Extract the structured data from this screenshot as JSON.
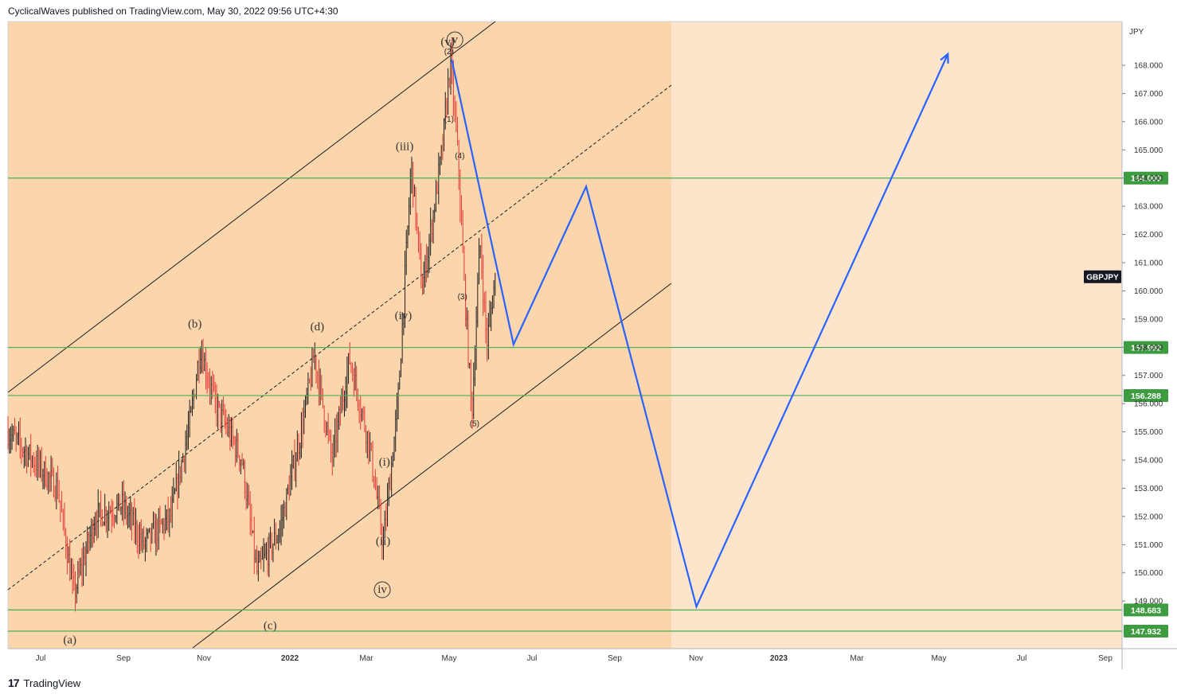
{
  "header": {
    "published_text": "CyclicalWaves published on TradingView.com, May 30, 2022 09:56 UTC+4:30"
  },
  "footer": {
    "logo_text": "TradingView"
  },
  "chart_data": {
    "type": "candlestick",
    "symbol": "GBPJPY",
    "currency_label": "JPY",
    "y_range": [
      147.5,
      169.0
    ],
    "y_ticks": [
      149.0,
      150.0,
      151.0,
      152.0,
      153.0,
      154.0,
      155.0,
      156.0,
      157.0,
      158.0,
      159.0,
      160.0,
      161.0,
      162.0,
      163.0,
      164.0,
      165.0,
      166.0,
      167.0,
      168.0
    ],
    "x_labels": [
      "Jul",
      "Sep",
      "Nov",
      "2022",
      "Mar",
      "May",
      "Jul",
      "Sep",
      "Nov",
      "2023",
      "Mar",
      "May",
      "Jul",
      "Sep"
    ],
    "colors": {
      "bull": "#1c1c1c",
      "bear": "#e53935",
      "level_line": "#4caf50",
      "level_badge": "#3d9c40",
      "projection": "#2962ff",
      "channel": "#1c1c1c",
      "bg_light": "#fde5cc",
      "bg_dark": "#fbd6ad"
    },
    "horizontal_levels": [
      {
        "label": "164.000",
        "value": 164.0
      },
      {
        "label": "157.992",
        "value": 157.992
      },
      {
        "label": "156.288",
        "value": 156.288
      },
      {
        "label": "148.683",
        "value": 148.683
      },
      {
        "label": "147.932",
        "value": 147.932
      }
    ],
    "price_path_anchors": [
      {
        "date": "2021-06-01",
        "price": 155.0
      },
      {
        "date": "2021-06-20",
        "price": 154.0
      },
      {
        "date": "2021-07-08",
        "price": 153.0
      },
      {
        "date": "2021-07-20",
        "price": 149.2
      },
      {
        "date": "2021-08-05",
        "price": 152.0
      },
      {
        "date": "2021-08-25",
        "price": 152.4
      },
      {
        "date": "2021-09-10",
        "price": 151.0
      },
      {
        "date": "2021-09-30",
        "price": 152.0
      },
      {
        "date": "2021-10-15",
        "price": 155.5
      },
      {
        "date": "2021-10-22",
        "price": 158.0
      },
      {
        "date": "2021-11-02",
        "price": 156.0
      },
      {
        "date": "2021-11-22",
        "price": 154.0
      },
      {
        "date": "2021-12-03",
        "price": 150.0
      },
      {
        "date": "2021-12-20",
        "price": 151.5
      },
      {
        "date": "2022-01-05",
        "price": 155.0
      },
      {
        "date": "2022-01-15",
        "price": 157.7
      },
      {
        "date": "2022-01-28",
        "price": 154.0
      },
      {
        "date": "2022-02-10",
        "price": 157.6
      },
      {
        "date": "2022-02-25",
        "price": 154.5
      },
      {
        "date": "2022-03-07",
        "price": 151.0
      },
      {
        "date": "2022-03-18",
        "price": 156.0
      },
      {
        "date": "2022-03-28",
        "price": 164.5
      },
      {
        "date": "2022-04-05",
        "price": 160.0
      },
      {
        "date": "2022-04-20",
        "price": 165.0
      },
      {
        "date": "2022-04-26",
        "price": 168.2
      },
      {
        "date": "2022-05-02",
        "price": 164.5
      },
      {
        "date": "2022-05-06",
        "price": 160.5
      },
      {
        "date": "2022-05-12",
        "price": 155.6
      },
      {
        "date": "2022-05-18",
        "price": 161.8
      },
      {
        "date": "2022-05-23",
        "price": 158.1
      },
      {
        "date": "2022-05-30",
        "price": 160.7
      }
    ],
    "projection": [
      {
        "date": "2022-04-27",
        "price": 168.2
      },
      {
        "date": "2022-06-12",
        "price": 158.1
      },
      {
        "date": "2022-08-05",
        "price": 163.7
      },
      {
        "date": "2022-10-26",
        "price": 148.8
      },
      {
        "date": "2023-05-01",
        "price": 168.4
      }
    ],
    "wave_labels": [
      {
        "text": "(a)",
        "date": "2021-07-17",
        "price": 147.5
      },
      {
        "text": "(b)",
        "date": "2021-10-18",
        "price": 158.7
      },
      {
        "text": "(c)",
        "date": "2021-12-13",
        "price": 148.0
      },
      {
        "text": "(d)",
        "date": "2022-01-17",
        "price": 158.6
      },
      {
        "text": "(ii)",
        "date": "2022-03-07",
        "price": 151.0
      },
      {
        "text": "(i)",
        "date": "2022-03-08",
        "price": 153.8
      },
      {
        "text": "(iii)",
        "date": "2022-03-23",
        "price": 165.0
      },
      {
        "text": "(iv)",
        "date": "2022-03-22",
        "price": 159.0
      },
      {
        "text": "(v)",
        "date": "2022-04-24",
        "price": 168.7
      },
      {
        "text": "(1)",
        "date": "2022-04-25",
        "price": 166.0
      },
      {
        "text": "(2)",
        "date": "2022-04-25",
        "price": 168.4
      },
      {
        "text": "(3)",
        "date": "2022-05-05",
        "price": 159.7
      },
      {
        "text": "(4)",
        "date": "2022-05-03",
        "price": 164.7
      },
      {
        "text": "(5)",
        "date": "2022-05-14",
        "price": 155.2
      }
    ],
    "circled_labels": [
      {
        "text": "iv",
        "date": "2022-03-04",
        "price": 149.4
      },
      {
        "text": "v",
        "date": "2022-04-27",
        "price": 168.9
      }
    ]
  }
}
